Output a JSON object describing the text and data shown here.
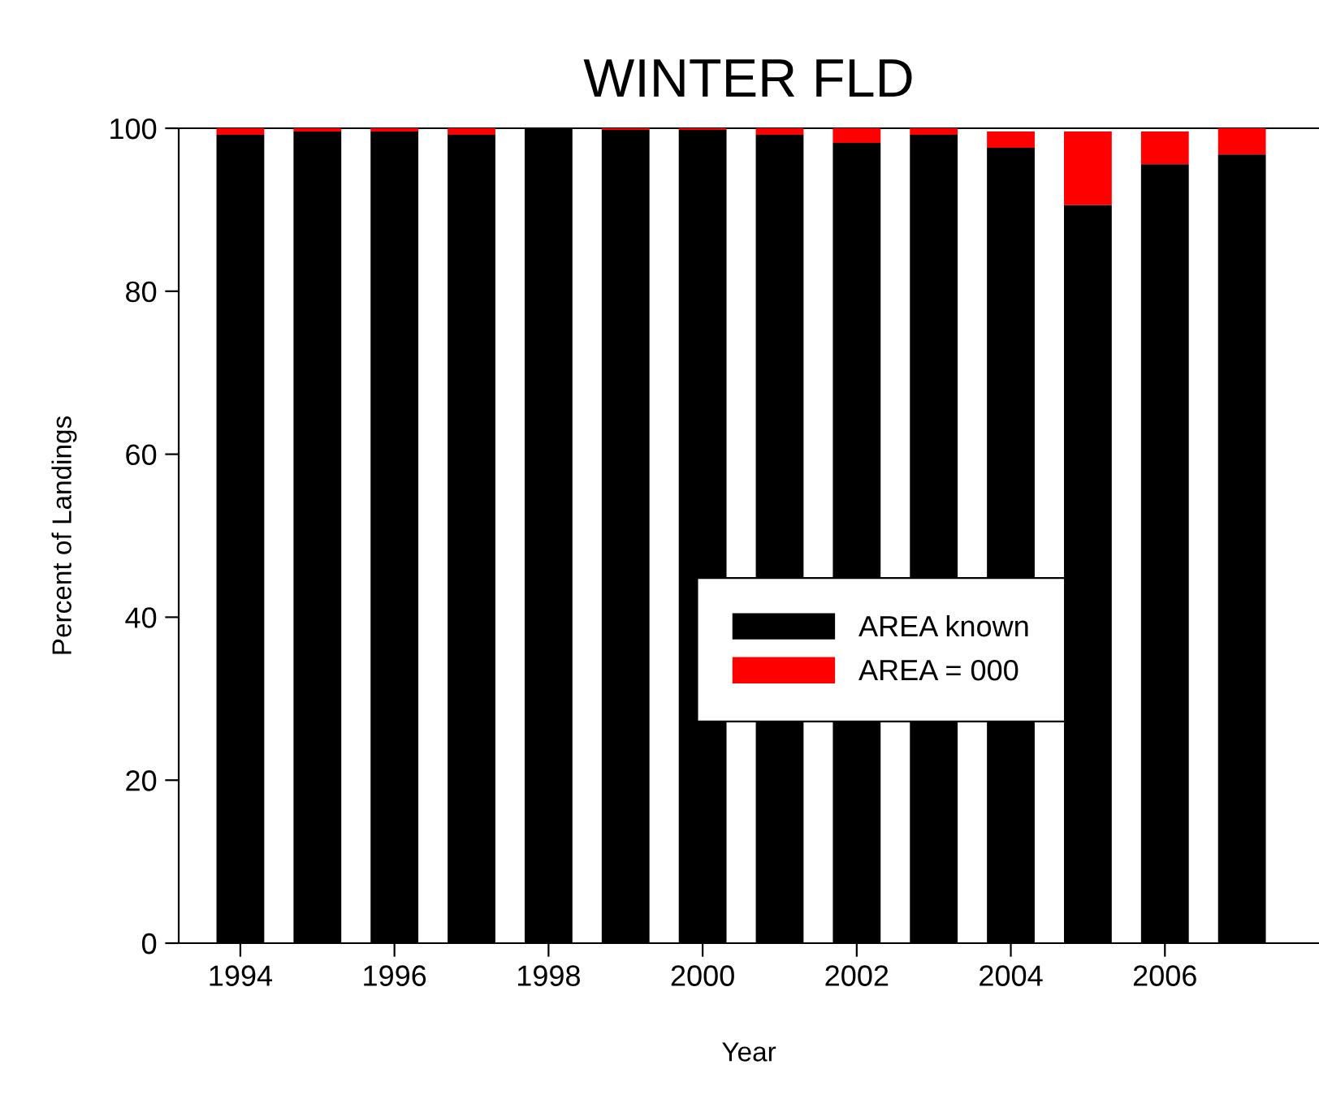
{
  "chart_data": {
    "type": "bar",
    "title": "WINTER FLD",
    "xlabel": "Year",
    "ylabel": "Percent of Landings",
    "stacked": true,
    "x": [
      1994,
      1995,
      1996,
      1997,
      1998,
      1999,
      2000,
      2001,
      2002,
      2003,
      2004,
      2005,
      2006,
      2007
    ],
    "series": [
      {
        "name": "AREA known",
        "color": "#000000",
        "values": [
          99.2,
          99.6,
          99.6,
          99.2,
          100,
          99.8,
          99.8,
          99.2,
          98.2,
          99.2,
          97.6,
          90.6,
          95.6,
          96.8
        ]
      },
      {
        "name": "AREA = 000",
        "color": "#ff0000",
        "values": [
          0.8,
          0.4,
          0.4,
          0.8,
          0,
          0.2,
          0.2,
          0.8,
          1.8,
          0.8,
          2.0,
          9.0,
          4.0,
          3.2
        ]
      }
    ],
    "xlim": [
      1993.2,
      2008
    ],
    "xticks": [
      1994,
      1996,
      1998,
      2000,
      2002,
      2004,
      2006
    ],
    "ylim": [
      0,
      100
    ],
    "yticks": [
      0,
      20,
      40,
      60,
      80,
      100
    ],
    "grid": false,
    "legend": "center right"
  }
}
